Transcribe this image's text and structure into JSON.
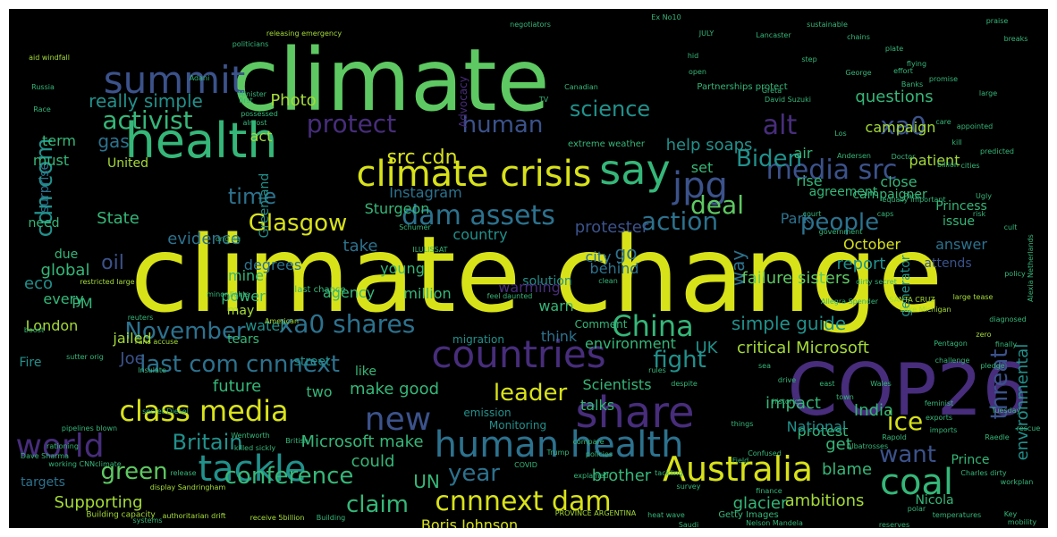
{
  "palette": {
    "background": "#000000",
    "yellow": "#d8e219",
    "lime": "#a5db36",
    "green": "#5ec962",
    "teal_green": "#35b779",
    "teal": "#21918c",
    "blue_teal": "#2c728e",
    "blue": "#3b528b",
    "indigo": "#472d7b",
    "purple": "#440154"
  },
  "words": [
    "climate change",
    "climate",
    "COP26",
    "health",
    "climate crisis",
    "human health",
    "share",
    "countries",
    "say",
    "summit",
    "Australia",
    "tackle",
    "jpg",
    "coal",
    "world",
    "new",
    "media src",
    "Glasgow",
    "dam assets",
    "cnnnext dam",
    "class media",
    "last com cnnnext",
    "xa0 shares",
    "activist",
    "protect",
    "human",
    "alt",
    "xa0",
    "science",
    "Biden",
    "src cdn",
    "cdn com",
    "deal",
    "action",
    "people",
    "China",
    "November",
    "time",
    "conference",
    "year",
    "Britain",
    "green",
    "claim",
    "leader",
    "ice",
    "want",
    "fight",
    "critical Microsoft",
    "simple guide",
    "threat",
    "environmental",
    "Supporting",
    "really simple",
    "help soaps",
    "questions",
    "campaign",
    "Photo",
    "United",
    "State",
    "evidence",
    "take",
    "Instagram",
    "Sturgeon",
    "go",
    "way",
    "report",
    "October",
    "degrees",
    "protester",
    "city",
    "global",
    "mine",
    "young",
    "country",
    "behind",
    "solution",
    "power",
    "agency",
    "million",
    "warn",
    "failure sisters",
    "warming",
    "think",
    "environment",
    "UK",
    "Scientists",
    "talks",
    "make good",
    "future",
    "two",
    "Microsoft make",
    "could",
    "UN",
    "brother",
    "Boris Johnson",
    "glacier",
    "ambitions",
    "blame",
    "get",
    "protest",
    "India",
    "impact",
    "National",
    "Joe",
    "oil",
    "eco",
    "every",
    "PM",
    "London",
    "jailed",
    "Fire",
    "water",
    "Greenland",
    "Park",
    "term",
    "must",
    "gas",
    "act",
    "set",
    "air",
    "rise",
    "close",
    "patient",
    "agreement",
    "campaigner",
    "Princess",
    "issue",
    "answer",
    "generator",
    "attends",
    "Nicola",
    "Prince",
    "tears",
    "may",
    "due",
    "need",
    "surprise",
    "targets",
    "street",
    "like",
    "Comment",
    "Advocacy",
    "Partnerships protect",
    "extreme weather",
    "last chance",
    "emission",
    "migration",
    "Monitoring",
    "Getty Images",
    "heat wave",
    "Building capacity",
    "Dave Sharma",
    "display Sandringham",
    "receive 5billion",
    "authoritarian drift",
    "PROVINCE ARGENTINA",
    "Charles dirty",
    "exports",
    "imports",
    "Pentagon",
    "feminist",
    "Lake Michigan",
    "David Suzuki",
    "Greta",
    "Russia",
    "Canadian",
    "negotiators",
    "Minister",
    "Paris",
    "Trump",
    "COVID",
    "policies",
    "cities",
    "reuters",
    "American",
    "Saudi",
    "Nelson Mandela",
    "finance",
    "reserves",
    "polar",
    "temperatures",
    "workplan",
    "Key",
    "Albatrosses",
    "Confused",
    "diagnosed",
    "zero",
    "policy",
    "Doctor",
    "court",
    "government",
    "caps",
    "dirty secret",
    "Alexia Netherlands",
    "SANTA CRUZ",
    "Allegra Spender",
    "aid windfall",
    "releasing emergency",
    "Ex No10",
    "JULY",
    "sustainable",
    "politicians",
    "Adani",
    "Schumer",
    "ILULISSAT",
    "restricted large",
    "large tease",
    "equally important",
    "feel daunted",
    "orig ng",
    "Race",
    "Lancaster",
    "chains",
    "plate",
    "praise",
    "breaks",
    "flying",
    "minor lights",
    "boost",
    "Fans accuse",
    "Insulate",
    "secret Diesel",
    "pipelines blown",
    "Wentworth",
    "British",
    "sutter orig",
    "killed sickly",
    "working CNNclimate",
    "release",
    "systems",
    "Building",
    "explained",
    "despite",
    "sea",
    "east",
    "drive",
    "town",
    "Wales",
    "predicted",
    "mobility",
    "finally",
    "challenge",
    "things",
    "rules",
    "clean",
    "kill",
    "care",
    "appointed",
    "promise",
    "Banks",
    "hid",
    "possessed",
    "step",
    "open",
    "first",
    "almost",
    "George",
    "effort",
    "historic",
    "large",
    "Ugly",
    "Los",
    "Andersen",
    "TV",
    "billion",
    "risk",
    "cult",
    "rationing",
    "compare",
    "survey",
    "Field",
    "tackling",
    "Rapold",
    "Raedle",
    "Tuesday",
    "pledge",
    "rescue"
  ]
}
